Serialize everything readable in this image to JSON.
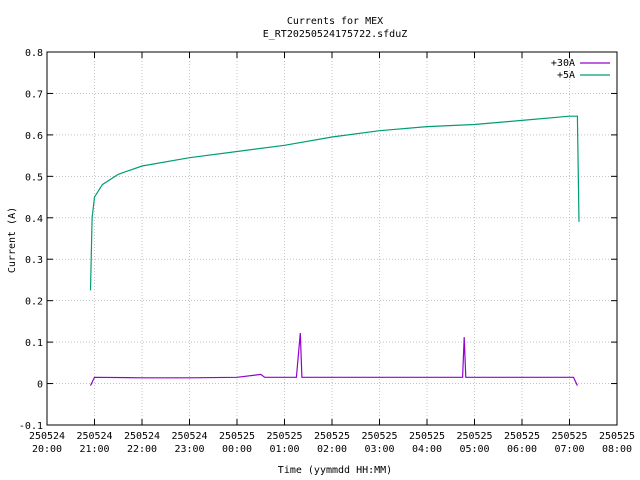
{
  "chart_data": {
    "type": "line",
    "title": "Currents for MEX",
    "subtitle": "E_RT20250524175722.sfduZ",
    "xlabel": "Time (yymmdd HH:MM)",
    "ylabel": "Current (A)",
    "xlim": [
      "2025-05-24 20:00",
      "2025-05-25 08:00"
    ],
    "ylim": [
      -0.1,
      0.8
    ],
    "y_ticks": [
      "-0.1",
      "0",
      "0.1",
      "0.2",
      "0.3",
      "0.4",
      "0.5",
      "0.6",
      "0.7",
      "0.8"
    ],
    "x_ticks": [
      {
        "date": "250524",
        "time": "20:00"
      },
      {
        "date": "250524",
        "time": "21:00"
      },
      {
        "date": "250524",
        "time": "22:00"
      },
      {
        "date": "250524",
        "time": "23:00"
      },
      {
        "date": "250525",
        "time": "00:00"
      },
      {
        "date": "250525",
        "time": "01:00"
      },
      {
        "date": "250525",
        "time": "02:00"
      },
      {
        "date": "250525",
        "time": "03:00"
      },
      {
        "date": "250525",
        "time": "04:00"
      },
      {
        "date": "250525",
        "time": "05:00"
      },
      {
        "date": "250525",
        "time": "06:00"
      },
      {
        "date": "250525",
        "time": "07:00"
      },
      {
        "date": "250525",
        "time": "08:00"
      }
    ],
    "grid": true,
    "legend_position": "top-right",
    "series": [
      {
        "name": "+30A",
        "color": "#9400d3",
        "points": [
          [
            "2025-05-24 20:55",
            -0.005
          ],
          [
            "2025-05-24 21:00",
            0.015
          ],
          [
            "2025-05-24 22:00",
            0.014
          ],
          [
            "2025-05-24 23:00",
            0.014
          ],
          [
            "2025-05-25 00:00",
            0.015
          ],
          [
            "2025-05-25 00:30",
            0.022
          ],
          [
            "2025-05-25 00:35",
            0.015
          ],
          [
            "2025-05-25 01:15",
            0.015
          ],
          [
            "2025-05-25 01:20",
            0.122
          ],
          [
            "2025-05-25 01:22",
            0.015
          ],
          [
            "2025-05-25 03:00",
            0.015
          ],
          [
            "2025-05-25 04:45",
            0.015
          ],
          [
            "2025-05-25 04:47",
            0.112
          ],
          [
            "2025-05-25 04:49",
            0.015
          ],
          [
            "2025-05-25 06:00",
            0.015
          ],
          [
            "2025-05-25 07:05",
            0.015
          ],
          [
            "2025-05-25 07:10",
            -0.005
          ]
        ]
      },
      {
        "name": "+5A",
        "color": "#009e73",
        "points": [
          [
            "2025-05-24 20:55",
            0.225
          ],
          [
            "2025-05-24 20:57",
            0.4
          ],
          [
            "2025-05-24 21:00",
            0.45
          ],
          [
            "2025-05-24 21:10",
            0.48
          ],
          [
            "2025-05-24 21:30",
            0.505
          ],
          [
            "2025-05-24 22:00",
            0.525
          ],
          [
            "2025-05-24 23:00",
            0.545
          ],
          [
            "2025-05-25 00:00",
            0.56
          ],
          [
            "2025-05-25 01:00",
            0.575
          ],
          [
            "2025-05-25 02:00",
            0.595
          ],
          [
            "2025-05-25 03:00",
            0.61
          ],
          [
            "2025-05-25 04:00",
            0.62
          ],
          [
            "2025-05-25 05:00",
            0.625
          ],
          [
            "2025-05-25 06:00",
            0.635
          ],
          [
            "2025-05-25 07:00",
            0.645
          ],
          [
            "2025-05-25 07:10",
            0.645
          ],
          [
            "2025-05-25 07:12",
            0.39
          ]
        ]
      }
    ]
  }
}
